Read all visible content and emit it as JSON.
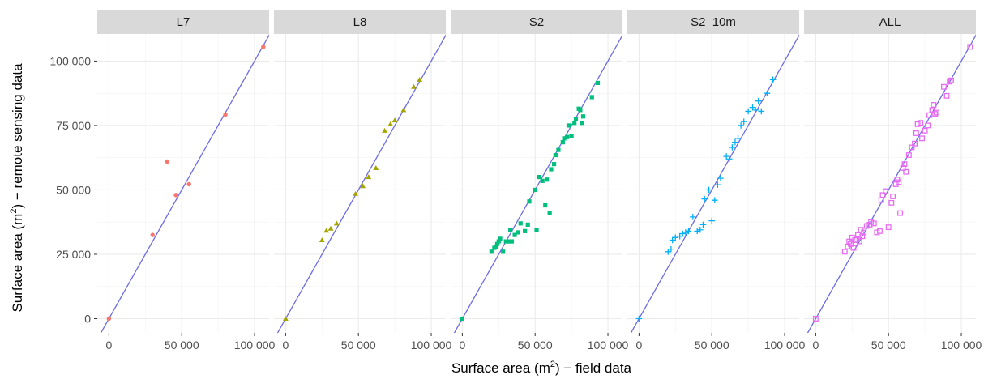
{
  "chart_data": {
    "type": "scatter",
    "xlabel": {
      "pre": "Surface area (m",
      "sup": "2",
      "post": ") − field data"
    },
    "ylabel": {
      "pre": "Surface area (m",
      "sup": "2",
      "post": ") − remote sensing data"
    },
    "xlim": [
      -8000,
      110000
    ],
    "ylim": [
      -5500,
      110500
    ],
    "x_ticks": [
      0,
      50000,
      100000
    ],
    "x_tick_labels": [
      "0",
      "50 000",
      "100 000"
    ],
    "y_ticks": [
      0,
      25000,
      50000,
      75000,
      100000
    ],
    "y_tick_labels": [
      "0",
      "25 000",
      "50 000",
      "75 000",
      "100 000"
    ],
    "reference_line": {
      "slope": 1,
      "intercept": 0,
      "color": "#6b6be6"
    },
    "grid": true,
    "panels": [
      {
        "name": "L7",
        "color": "#f8766d",
        "shape": "circle",
        "points": [
          [
            0,
            0
          ],
          [
            30000,
            32500
          ],
          [
            40000,
            61000
          ],
          [
            46000,
            48000
          ],
          [
            55000,
            52200
          ],
          [
            80000,
            79200
          ],
          [
            106000,
            105500
          ]
        ]
      },
      {
        "name": "L8",
        "color": "#a3a500",
        "shape": "triangle",
        "points": [
          [
            0,
            0
          ],
          [
            25000,
            30500
          ],
          [
            28000,
            34200
          ],
          [
            31000,
            35000
          ],
          [
            35000,
            37000
          ],
          [
            48000,
            48500
          ],
          [
            53000,
            51500
          ],
          [
            57000,
            55000
          ],
          [
            62000,
            58500
          ],
          [
            68000,
            73000
          ],
          [
            72000,
            75500
          ],
          [
            75000,
            77000
          ],
          [
            81000,
            81000
          ],
          [
            88000,
            90000
          ],
          [
            92000,
            92800
          ]
        ]
      },
      {
        "name": "S2",
        "color": "#00bf7d",
        "shape": "square",
        "points": [
          [
            0,
            0
          ],
          [
            20000,
            26000
          ],
          [
            22000,
            27500
          ],
          [
            23000,
            28000
          ],
          [
            24000,
            29000
          ],
          [
            25000,
            30000
          ],
          [
            26000,
            31000
          ],
          [
            28000,
            26000
          ],
          [
            30000,
            30000
          ],
          [
            32000,
            30000
          ],
          [
            33000,
            34500
          ],
          [
            34000,
            30000
          ],
          [
            36000,
            32500
          ],
          [
            38000,
            33500
          ],
          [
            40000,
            37000
          ],
          [
            43000,
            34000
          ],
          [
            45000,
            36500
          ],
          [
            46000,
            45500
          ],
          [
            50000,
            50000
          ],
          [
            51000,
            34500
          ],
          [
            53000,
            55000
          ],
          [
            55000,
            53500
          ],
          [
            57000,
            44000
          ],
          [
            58000,
            54000
          ],
          [
            60000,
            41000
          ],
          [
            61000,
            58000
          ],
          [
            63000,
            60000
          ],
          [
            64000,
            63500
          ],
          [
            66000,
            65500
          ],
          [
            69000,
            68500
          ],
          [
            70000,
            70000
          ],
          [
            72000,
            70500
          ],
          [
            73000,
            75000
          ],
          [
            75000,
            71000
          ],
          [
            77000,
            76000
          ],
          [
            78000,
            77500
          ],
          [
            80000,
            81500
          ],
          [
            81000,
            81000
          ],
          [
            82000,
            76000
          ],
          [
            83000,
            78500
          ],
          [
            89000,
            86000
          ],
          [
            93000,
            91500
          ]
        ]
      },
      {
        "name": "S2_10m",
        "color": "#00b0f6",
        "shape": "plus",
        "points": [
          [
            0,
            0
          ],
          [
            20000,
            26000
          ],
          [
            22000,
            27000
          ],
          [
            23000,
            30500
          ],
          [
            25000,
            31500
          ],
          [
            28000,
            32000
          ],
          [
            30000,
            33000
          ],
          [
            32000,
            33500
          ],
          [
            34000,
            34000
          ],
          [
            37000,
            39500
          ],
          [
            40000,
            34000
          ],
          [
            42000,
            34500
          ],
          [
            44000,
            36500
          ],
          [
            45000,
            46500
          ],
          [
            48000,
            50000
          ],
          [
            50000,
            38000
          ],
          [
            52000,
            46000
          ],
          [
            54000,
            52000
          ],
          [
            56000,
            54500
          ],
          [
            60000,
            63000
          ],
          [
            62000,
            62000
          ],
          [
            64000,
            66500
          ],
          [
            66000,
            68500
          ],
          [
            68000,
            70000
          ],
          [
            70000,
            75000
          ],
          [
            72000,
            76500
          ],
          [
            75000,
            80500
          ],
          [
            78000,
            82000
          ],
          [
            80000,
            81000
          ],
          [
            82000,
            84500
          ],
          [
            84000,
            80500
          ],
          [
            88000,
            87500
          ],
          [
            92000,
            92800
          ]
        ]
      },
      {
        "name": "ALL",
        "color": "#e76bf3",
        "shape": "square-open",
        "points": [
          [
            0,
            0
          ],
          [
            20000,
            26000
          ],
          [
            22000,
            28000
          ],
          [
            23000,
            30000
          ],
          [
            24000,
            29000
          ],
          [
            25000,
            31500
          ],
          [
            26000,
            27500
          ],
          [
            27000,
            30500
          ],
          [
            28000,
            31000
          ],
          [
            29000,
            32500
          ],
          [
            30000,
            30000
          ],
          [
            31000,
            34500
          ],
          [
            32000,
            32000
          ],
          [
            33000,
            33500
          ],
          [
            35000,
            36000
          ],
          [
            37000,
            36500
          ],
          [
            38000,
            37500
          ],
          [
            40000,
            37000
          ],
          [
            42000,
            33500
          ],
          [
            44000,
            34000
          ],
          [
            45000,
            46000
          ],
          [
            46000,
            48000
          ],
          [
            48000,
            49500
          ],
          [
            50000,
            35500
          ],
          [
            52000,
            45000
          ],
          [
            53000,
            47500
          ],
          [
            55000,
            52200
          ],
          [
            56000,
            54000
          ],
          [
            57000,
            53000
          ],
          [
            58000,
            41000
          ],
          [
            60000,
            58500
          ],
          [
            61000,
            60000
          ],
          [
            62000,
            57000
          ],
          [
            64000,
            63500
          ],
          [
            66000,
            66500
          ],
          [
            68000,
            68000
          ],
          [
            69000,
            72000
          ],
          [
            70000,
            75500
          ],
          [
            72000,
            76000
          ],
          [
            73000,
            70000
          ],
          [
            75000,
            73000
          ],
          [
            77000,
            75000
          ],
          [
            78000,
            79000
          ],
          [
            80000,
            81000
          ],
          [
            81000,
            83000
          ],
          [
            82000,
            79500
          ],
          [
            83000,
            80000
          ],
          [
            88000,
            90000
          ],
          [
            90000,
            86500
          ],
          [
            92000,
            92000
          ],
          [
            93000,
            92500
          ],
          [
            106000,
            105500
          ]
        ]
      }
    ]
  }
}
